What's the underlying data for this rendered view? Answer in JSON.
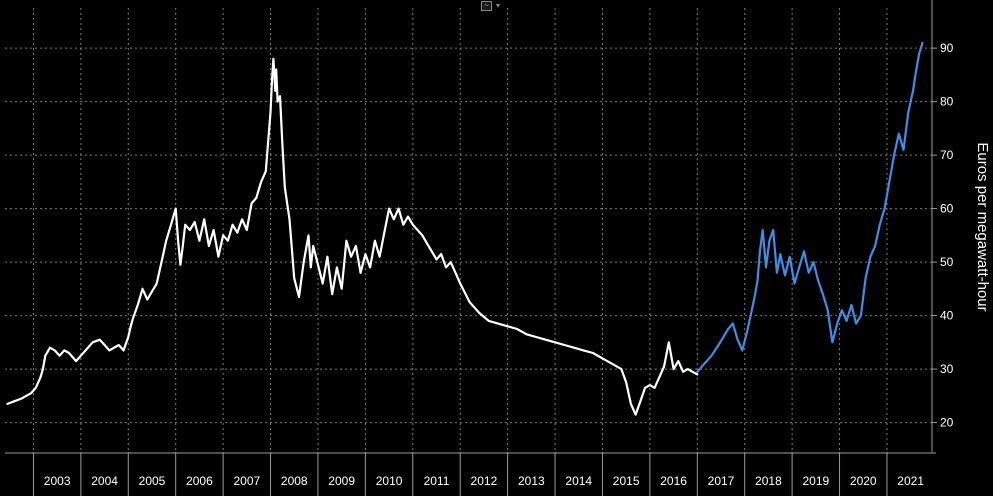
{
  "toolbar": {
    "chart_menu_icon": "chart-menu-icon",
    "dropdown_icon": "chevron-down-icon",
    "dropdown_glyph": "▾"
  },
  "colors": {
    "background": "#000000",
    "history_line": "#ffffff",
    "recent_line": "#3d8ee6",
    "grid": "#7a7a7a"
  },
  "chart_data": {
    "type": "line",
    "title": "",
    "xlabel": "",
    "ylabel": "Euros per megawatt-hour",
    "x_tick_labels": [
      "2003",
      "2004",
      "2005",
      "2006",
      "2007",
      "2008",
      "2009",
      "2010",
      "2011",
      "2012",
      "2013",
      "2014",
      "2015",
      "2016",
      "2017",
      "2018",
      "2019",
      "2020",
      "2021"
    ],
    "y_ticks": [
      20,
      30,
      40,
      50,
      60,
      70,
      80,
      90
    ],
    "ylim": [
      14.5,
      97.5
    ],
    "xlim": [
      2002.4,
      2021.95
    ],
    "grid": true,
    "y_axis_side": "right",
    "series": [
      {
        "color": "#ffffff",
        "x": [
          2002.45,
          2002.6,
          2002.75,
          2002.85,
          2002.95,
          2003.05,
          2003.15,
          2003.2,
          2003.25,
          2003.35,
          2003.45,
          2003.55,
          2003.65,
          2003.75,
          2003.9,
          2004.0,
          2004.1,
          2004.25,
          2004.4,
          2004.5,
          2004.6,
          2004.7,
          2004.8,
          2004.9,
          2005.0,
          2005.05,
          2005.1,
          2005.2,
          2005.3,
          2005.4,
          2005.5,
          2005.6,
          2005.7,
          2005.8,
          2005.9,
          2006.0,
          2006.05,
          2006.1,
          2006.15,
          2006.2,
          2006.3,
          2006.4,
          2006.5,
          2006.6,
          2006.7,
          2006.8,
          2006.9,
          2007.0,
          2007.1,
          2007.2,
          2007.3,
          2007.4,
          2007.5,
          2007.6,
          2007.7,
          2007.8,
          2007.9,
          2008.0,
          2008.03,
          2008.06,
          2008.1,
          2008.12,
          2008.15,
          2008.2,
          2008.25,
          2008.3,
          2008.4,
          2008.5,
          2008.6,
          2008.7,
          2008.8,
          2008.85,
          2008.9,
          2009.0,
          2009.1,
          2009.2,
          2009.3,
          2009.4,
          2009.5,
          2009.6,
          2009.7,
          2009.8,
          2009.9,
          2010.0,
          2010.1,
          2010.2,
          2010.3,
          2010.4,
          2010.5,
          2010.6,
          2010.7,
          2010.8,
          2010.9,
          2011.0,
          2011.1,
          2011.2,
          2011.3,
          2011.4,
          2011.5,
          2011.6,
          2011.7,
          2011.8,
          2011.9,
          2012.0,
          2012.2,
          2012.4,
          2012.6,
          2012.8,
          2013.0,
          2013.2,
          2013.4,
          2013.6,
          2013.8,
          2014.0,
          2014.2,
          2014.4,
          2014.6,
          2014.8,
          2015.0,
          2015.2,
          2015.4,
          2015.5,
          2015.6,
          2015.7,
          2015.8,
          2015.9,
          2016.0,
          2016.1,
          2016.2,
          2016.3,
          2016.4,
          2016.5,
          2016.6,
          2016.7,
          2016.8,
          2016.9,
          2017.0
        ],
        "values": [
          23.5,
          24.0,
          24.5,
          25.0,
          25.5,
          26.5,
          28.5,
          30.0,
          32.5,
          34.0,
          33.5,
          32.5,
          33.5,
          33.0,
          31.5,
          32.5,
          33.5,
          35.0,
          35.5,
          34.5,
          33.5,
          34.0,
          34.5,
          33.5,
          36.0,
          38.0,
          39.5,
          42.0,
          45.0,
          43.0,
          44.5,
          46.0,
          50.0,
          54.0,
          57.0,
          60.0,
          54.0,
          49.5,
          53.0,
          57.0,
          56.0,
          57.5,
          54.0,
          58.0,
          53.0,
          56.0,
          51.0,
          55.0,
          54.0,
          57.0,
          55.5,
          58.0,
          56.0,
          61.0,
          62.0,
          65.0,
          67.0,
          78.0,
          84.0,
          88.0,
          82.0,
          86.0,
          80.0,
          81.0,
          72.0,
          64.0,
          58.0,
          47.0,
          43.5,
          50.0,
          55.0,
          49.0,
          53.0,
          49.5,
          46.0,
          51.0,
          44.0,
          49.0,
          45.0,
          54.0,
          51.0,
          53.0,
          48.0,
          51.5,
          49.0,
          54.0,
          51.0,
          55.5,
          60.0,
          58.0,
          60.0,
          57.0,
          58.5,
          57.0,
          56.0,
          55.0,
          53.5,
          52.0,
          50.5,
          51.5,
          49.0,
          50.0,
          48.0,
          46.0,
          42.5,
          40.5,
          39.0,
          38.5,
          38.0,
          37.5,
          36.5,
          36.0,
          35.5,
          35.0,
          34.5,
          34.0,
          33.5,
          33.0,
          32.0,
          31.0,
          30.0,
          27.5,
          23.5,
          21.5,
          24.0,
          26.5,
          27.0,
          26.5,
          28.5,
          30.5,
          35.0,
          30.0,
          31.5,
          29.5,
          30.0,
          29.5,
          29.0
        ]
      },
      {
        "color": "#3d8ee6",
        "x": [
          2017.0,
          2017.15,
          2017.3,
          2017.45,
          2017.55,
          2017.65,
          2017.75,
          2017.85,
          2017.95,
          2018.05,
          2018.15,
          2018.22,
          2018.27,
          2018.32,
          2018.38,
          2018.45,
          2018.52,
          2018.6,
          2018.68,
          2018.75,
          2018.85,
          2018.95,
          2019.05,
          2019.15,
          2019.25,
          2019.35,
          2019.45,
          2019.55,
          2019.65,
          2019.75,
          2019.85,
          2019.95,
          2020.05,
          2020.15,
          2020.25,
          2020.35,
          2020.45,
          2020.55,
          2020.65,
          2020.75,
          2020.85,
          2020.95,
          2021.05,
          2021.15,
          2021.25,
          2021.35,
          2021.45,
          2021.55,
          2021.6,
          2021.68,
          2021.75
        ],
        "values": [
          29.5,
          31.0,
          32.5,
          34.5,
          36.0,
          37.5,
          38.5,
          35.5,
          33.5,
          37.0,
          41.0,
          44.0,
          46.5,
          52.0,
          56.0,
          49.0,
          54.0,
          56.0,
          48.0,
          51.5,
          47.5,
          51.0,
          46.0,
          49.0,
          52.0,
          48.0,
          50.0,
          46.5,
          44.0,
          41.0,
          35.0,
          38.5,
          41.0,
          39.0,
          42.0,
          38.5,
          40.0,
          47.0,
          51.0,
          53.0,
          57.0,
          60.0,
          65.0,
          70.0,
          74.0,
          71.0,
          78.0,
          82.0,
          85.0,
          89.0,
          91.0
        ]
      }
    ]
  }
}
